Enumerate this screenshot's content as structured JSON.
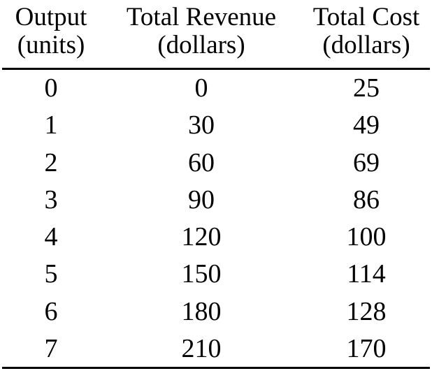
{
  "table": {
    "headers": [
      {
        "line1": "Output",
        "line2": "(units)"
      },
      {
        "line1": "Total Revenue",
        "line2": "(dollars)"
      },
      {
        "line1": "Total Cost",
        "line2": "(dollars)"
      }
    ],
    "rows": [
      {
        "output": "0",
        "revenue": "0",
        "cost": "25"
      },
      {
        "output": "1",
        "revenue": "30",
        "cost": "49"
      },
      {
        "output": "2",
        "revenue": "60",
        "cost": "69"
      },
      {
        "output": "3",
        "revenue": "90",
        "cost": "86"
      },
      {
        "output": "4",
        "revenue": "120",
        "cost": "100"
      },
      {
        "output": "5",
        "revenue": "150",
        "cost": "114"
      },
      {
        "output": "6",
        "revenue": "180",
        "cost": "128"
      },
      {
        "output": "7",
        "revenue": "210",
        "cost": "170"
      }
    ]
  }
}
